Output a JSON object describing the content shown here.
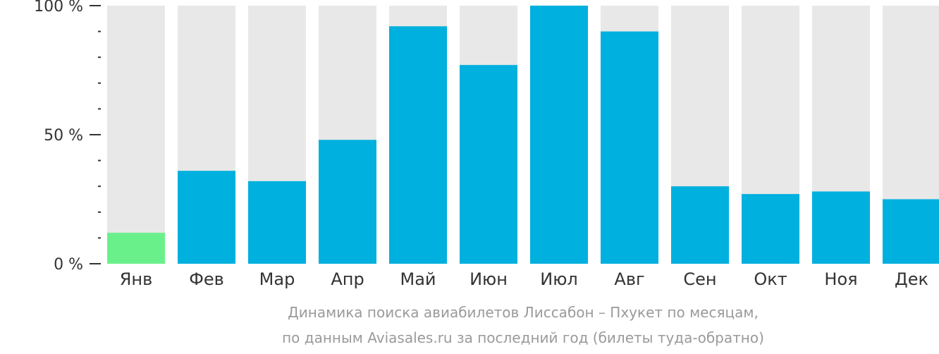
{
  "chart_data": {
    "type": "bar",
    "categories": [
      "Янв",
      "Фев",
      "Мар",
      "Апр",
      "Май",
      "Июн",
      "Июл",
      "Авг",
      "Сен",
      "Окт",
      "Ноя",
      "Дек"
    ],
    "values": [
      12,
      36,
      32,
      48,
      92,
      77,
      100,
      90,
      30,
      27,
      28,
      25
    ],
    "ylim": [
      0,
      100
    ],
    "yticks": [
      {
        "value": 0,
        "label": "0 %"
      },
      {
        "value": 50,
        "label": "50 %"
      },
      {
        "value": 100,
        "label": "100 %"
      }
    ],
    "minor_tick_step": 10,
    "highlight_index": 0,
    "colors": {
      "bar": "#00b0de",
      "highlight": "#6af08a",
      "track": "#e8e8e8",
      "axis": "#333333"
    },
    "grid": false,
    "legend": "none"
  },
  "caption": {
    "line1": "Динамика поиска авиабилетов Лиссабон – Пхукет по месяцам,",
    "line2": "по данным Aviasales.ru за последний год (билеты туда-обратно)"
  }
}
